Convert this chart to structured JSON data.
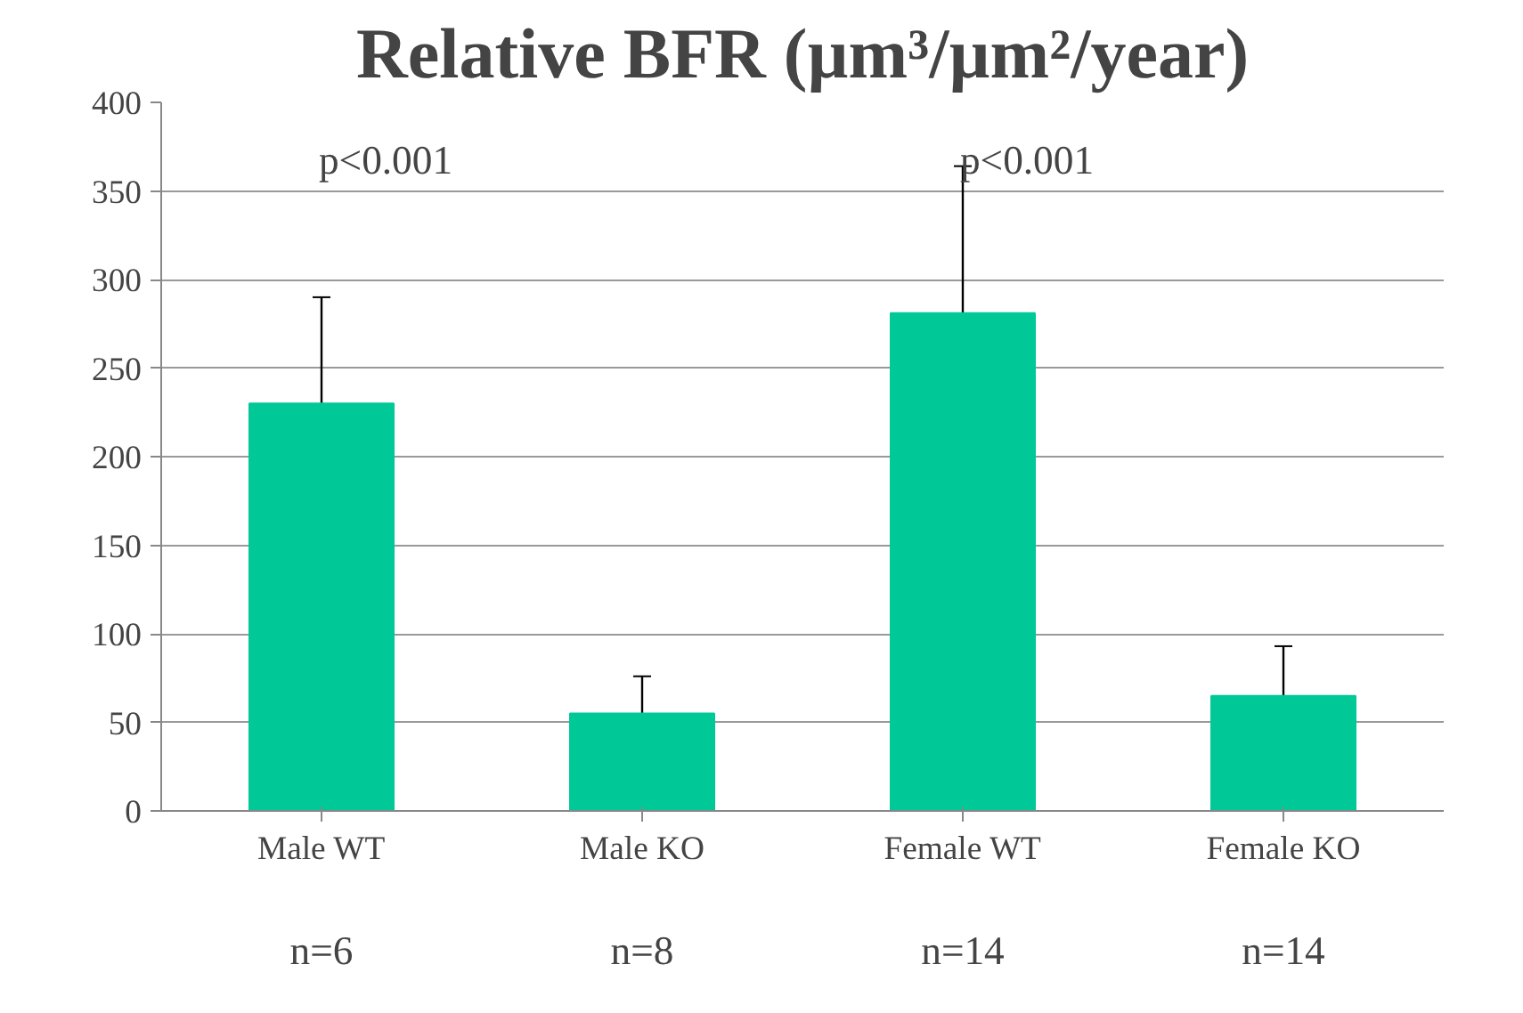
{
  "chart_data": {
    "type": "bar",
    "title": "Relative BFR (µm³/µm²/year)",
    "categories": [
      "Male WT",
      "Male KO",
      "Female WT",
      "Female KO"
    ],
    "values": [
      230,
      55,
      281,
      65
    ],
    "errors": [
      60,
      21,
      83,
      28
    ],
    "color": "#00c896",
    "ylim": [
      0,
      400
    ],
    "yticks": [
      0,
      50,
      100,
      150,
      200,
      250,
      300,
      350,
      400
    ],
    "grid": "y",
    "annotations": [
      "p<0.001",
      "p<0.001",
      "n=6",
      "n=8",
      "n=14",
      "n=14"
    ]
  }
}
